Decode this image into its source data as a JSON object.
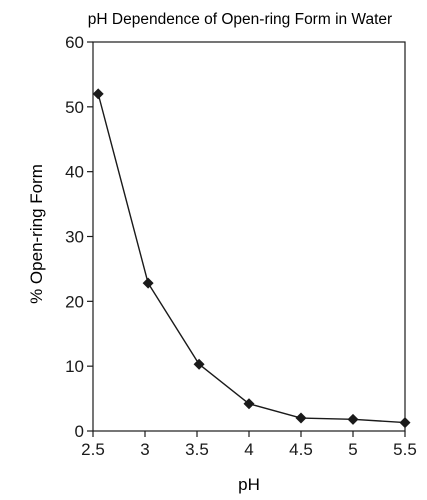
{
  "chart_data": {
    "type": "line",
    "title": "pH Dependence of Open-ring Form in Water",
    "xlabel": "pH",
    "ylabel": "% Open-ring Form",
    "xlim": [
      2.5,
      5.5
    ],
    "ylim": [
      0,
      60
    ],
    "xticks": [
      "2.5",
      "3",
      "3.5",
      "4",
      "4.5",
      "5",
      "5.5"
    ],
    "yticks": [
      "0",
      "10",
      "20",
      "30",
      "40",
      "50",
      "60"
    ],
    "grid": false,
    "legend": "none",
    "marker": "diamond",
    "color": "#1a1a1a",
    "series": [
      {
        "x": [
          2.55,
          3.03,
          3.52,
          4.0,
          4.5,
          5.0,
          5.5
        ],
        "y": [
          52.0,
          22.8,
          10.3,
          4.2,
          2.0,
          1.8,
          1.3
        ]
      }
    ]
  }
}
